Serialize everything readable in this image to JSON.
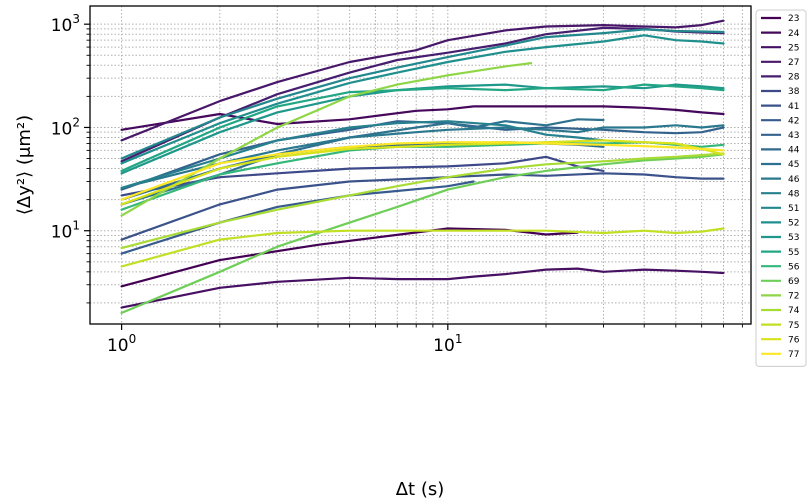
{
  "chart_data": {
    "type": "line",
    "xlabel": "Δt (s)",
    "ylabel": "⟨Δy²⟩ (μm²)",
    "xscale": "log",
    "yscale": "log",
    "xlim": [
      0.8,
      85
    ],
    "ylim": [
      1.25,
      1500
    ],
    "grid": true,
    "legend_position": "right",
    "x_ticks": [
      {
        "value": 1,
        "base": "10",
        "exp": "0"
      },
      {
        "value": 10,
        "base": "10",
        "exp": "1"
      }
    ],
    "y_ticks": [
      {
        "value": 10,
        "base": "10",
        "exp": "1"
      },
      {
        "value": 100,
        "base": "10",
        "exp": "2"
      },
      {
        "value": 1000,
        "base": "10",
        "exp": "3"
      }
    ],
    "series": [
      {
        "name": "23",
        "color": "#440154",
        "x": [
          1,
          2,
          4,
          10,
          15,
          20,
          25
        ],
        "y": [
          2.9,
          5.2,
          7.3,
          10.5,
          10.2,
          9.2,
          9.6
        ]
      },
      {
        "name": "24",
        "color": "#46085c",
        "x": [
          1,
          2,
          3,
          5,
          8,
          10,
          12,
          20,
          30,
          40,
          50,
          60,
          70
        ],
        "y": [
          95,
          135,
          108,
          120,
          145,
          150,
          160,
          160,
          160,
          155,
          148,
          140,
          135
        ]
      },
      {
        "name": "25",
        "color": "#471063",
        "x": [
          1,
          2,
          3,
          5,
          7,
          10,
          12,
          15,
          20,
          25,
          30,
          40,
          50,
          60,
          70
        ],
        "y": [
          1.8,
          2.8,
          3.2,
          3.5,
          3.4,
          3.4,
          3.6,
          3.8,
          4.2,
          4.3,
          4.0,
          4.2,
          4.1,
          4.0,
          3.9
        ]
      },
      {
        "name": "27",
        "color": "#481769",
        "x": [
          1,
          2,
          3,
          5,
          8,
          10,
          15,
          20,
          30,
          40,
          50,
          60,
          70
        ],
        "y": [
          75,
          180,
          275,
          430,
          560,
          700,
          870,
          950,
          980,
          950,
          930,
          980,
          1080
        ]
      },
      {
        "name": "28",
        "color": "#471e6f",
        "x": [
          1,
          2,
          3,
          5,
          7,
          10,
          15,
          20,
          30,
          40,
          50,
          60,
          70
        ],
        "y": [
          47,
          125,
          210,
          340,
          450,
          530,
          650,
          800,
          920,
          900,
          850,
          830,
          820
        ]
      },
      {
        "name": "38",
        "color": "#3e4989",
        "x": [
          1,
          2,
          3,
          5,
          10,
          15,
          20,
          25,
          30
        ],
        "y": [
          22,
          33,
          36,
          40,
          42,
          45,
          52,
          42,
          38
        ]
      },
      {
        "name": "41",
        "color": "#3b528b",
        "x": [
          1,
          2,
          3,
          5,
          10,
          15,
          20,
          30,
          40,
          50,
          60,
          70
        ],
        "y": [
          8.2,
          18,
          25,
          30,
          33,
          35,
          34,
          36,
          35,
          33,
          32,
          32
        ]
      },
      {
        "name": "42",
        "color": "#375b8d",
        "x": [
          1,
          2,
          3,
          5,
          10,
          12
        ],
        "y": [
          6,
          12,
          17,
          22,
          27,
          30
        ]
      },
      {
        "name": "43",
        "color": "#33638d",
        "x": [
          1,
          2,
          3,
          5,
          7,
          10,
          15,
          20,
          30,
          40,
          50,
          60,
          70
        ],
        "y": [
          25,
          55,
          75,
          95,
          115,
          110,
          95,
          100,
          95,
          90,
          88,
          90,
          100
        ]
      },
      {
        "name": "44",
        "color": "#306a8e",
        "x": [
          1,
          2,
          3,
          5,
          10,
          15,
          20,
          25,
          30
        ],
        "y": [
          20,
          40,
          55,
          65,
          70,
          72,
          70,
          68,
          65
        ]
      },
      {
        "name": "45",
        "color": "#2d718e",
        "x": [
          1,
          2,
          3,
          5,
          8,
          10,
          12,
          15,
          20,
          25,
          30
        ],
        "y": [
          18,
          35,
          55,
          80,
          100,
          110,
          100,
          115,
          105,
          120,
          118
        ]
      },
      {
        "name": "46",
        "color": "#2a788e",
        "x": [
          1,
          2,
          3,
          5,
          8,
          10,
          15,
          20,
          25,
          30,
          40,
          50,
          60,
          70
        ],
        "y": [
          26,
          45,
          60,
          80,
          90,
          95,
          100,
          95,
          90,
          100,
          100,
          105,
          100,
          105
        ]
      },
      {
        "name": "48",
        "color": "#27808e",
        "x": [
          1,
          2,
          3,
          5,
          7,
          10,
          15,
          20,
          25,
          30
        ],
        "y": [
          26,
          50,
          75,
          100,
          110,
          115,
          105,
          85,
          80,
          75
        ]
      },
      {
        "name": "51",
        "color": "#23888e",
        "x": [
          1,
          2,
          3,
          5,
          7,
          10,
          15,
          20,
          30,
          40,
          50,
          60,
          70
        ],
        "y": [
          50,
          125,
          190,
          300,
          380,
          480,
          620,
          750,
          820,
          890,
          860,
          850,
          840
        ]
      },
      {
        "name": "52",
        "color": "#1f908d",
        "x": [
          1,
          2,
          3,
          5,
          7,
          10,
          15,
          20,
          30,
          40,
          50,
          60,
          70
        ],
        "y": [
          45,
          110,
          170,
          270,
          340,
          430,
          540,
          600,
          680,
          780,
          700,
          680,
          650
        ]
      },
      {
        "name": "53",
        "color": "#1f988b",
        "x": [
          1,
          2,
          3,
          5,
          7,
          10,
          15,
          20,
          30,
          40,
          50,
          60,
          70
        ],
        "y": [
          36,
          90,
          140,
          200,
          230,
          250,
          260,
          240,
          250,
          240,
          260,
          250,
          240
        ]
      },
      {
        "name": "55",
        "color": "#22a785",
        "x": [
          1,
          2,
          3,
          5,
          10,
          15,
          20,
          30,
          40,
          50,
          60,
          70
        ],
        "y": [
          38,
          100,
          160,
          220,
          240,
          230,
          240,
          230,
          260,
          250,
          240,
          230
        ]
      },
      {
        "name": "56",
        "color": "#35b779",
        "x": [
          1,
          2,
          3,
          5,
          7,
          10,
          15,
          20,
          30,
          40,
          50,
          60,
          70
        ],
        "y": [
          16,
          35,
          45,
          60,
          65,
          65,
          68,
          70,
          70,
          72,
          68,
          65,
          68
        ]
      },
      {
        "name": "69",
        "color": "#6ece58",
        "x": [
          1,
          2,
          3,
          5,
          7,
          10,
          15,
          20,
          30,
          40,
          50,
          60,
          70
        ],
        "y": [
          1.6,
          4.0,
          7.0,
          12,
          17,
          25,
          33,
          38,
          44,
          48,
          50,
          52,
          55
        ]
      },
      {
        "name": "72",
        "color": "#8ed645",
        "x": [
          1,
          2,
          3,
          5,
          7,
          10,
          15,
          18
        ],
        "y": [
          14,
          50,
          100,
          200,
          260,
          320,
          390,
          420
        ]
      },
      {
        "name": "74",
        "color": "#a8db34",
        "x": [
          1,
          2,
          3,
          5,
          7,
          10,
          15,
          20,
          30,
          40,
          50,
          60,
          70
        ],
        "y": [
          6.8,
          12,
          16,
          22,
          27,
          33,
          40,
          44,
          47,
          50,
          52,
          54,
          56
        ]
      },
      {
        "name": "75",
        "color": "#c2df23",
        "x": [
          1,
          2,
          3,
          5,
          10,
          20,
          30,
          40,
          50,
          60,
          70
        ],
        "y": [
          4.5,
          8.2,
          9.5,
          10,
          10,
          10,
          9.5,
          10,
          9.5,
          9.8,
          10.5
        ]
      },
      {
        "name": "76",
        "color": "#d8e219",
        "x": [
          1,
          2,
          3,
          5,
          10,
          15,
          20,
          30,
          40,
          50,
          60,
          70
        ],
        "y": [
          18,
          40,
          52,
          62,
          68,
          70,
          72,
          75,
          72,
          70,
          62,
          55
        ]
      },
      {
        "name": "77",
        "color": "#fde725",
        "x": [
          1,
          2,
          3,
          5,
          7,
          10,
          15,
          20,
          30,
          40,
          50,
          60,
          70
        ],
        "y": [
          20,
          45,
          55,
          65,
          70,
          72,
          72,
          70,
          68,
          66,
          64,
          62,
          60
        ]
      }
    ]
  }
}
